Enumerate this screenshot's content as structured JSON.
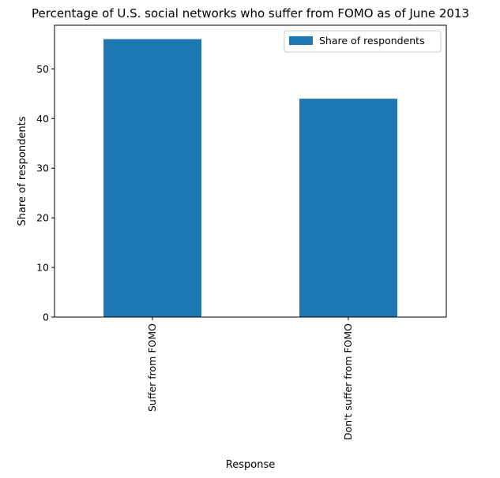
{
  "chart_data": {
    "type": "bar",
    "title": "Percentage of U.S. social networks who suffer from FOMO as of June 2013",
    "xlabel": "Response",
    "ylabel": "Share of respondents",
    "categories": [
      "Suffer from FOMO",
      "Don't suffer from FOMO"
    ],
    "series": [
      {
        "name": "Share of respondents",
        "values": [
          56,
          44
        ]
      }
    ],
    "ylim": [
      0,
      58.8
    ],
    "yticks": [
      0,
      10,
      20,
      30,
      40,
      50
    ],
    "grid": false,
    "legend": "top-right",
    "bar_color": "#1f77b4"
  }
}
